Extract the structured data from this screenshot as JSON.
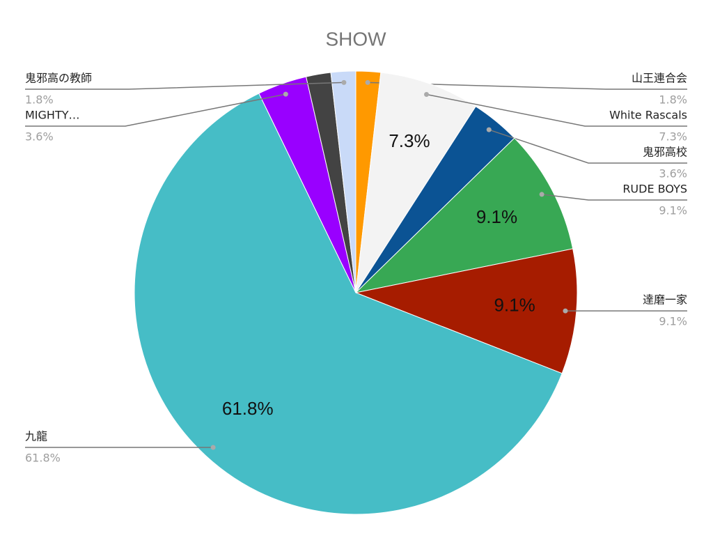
{
  "chart_data": {
    "type": "pie",
    "title": "SHOW",
    "categories": [
      "山王連合会",
      "White Rascals",
      "鬼邪高校",
      "RUDE BOYS",
      "達磨一家",
      "九龍",
      "MIGHTY…",
      null,
      "鬼邪高の教師"
    ],
    "values": [
      1.8,
      7.3,
      3.6,
      9.1,
      9.1,
      61.8,
      3.6,
      1.8,
      1.8
    ],
    "value_labels": [
      "1.8%",
      "7.3%",
      "3.6%",
      "9.1%",
      "9.1%",
      "61.8%",
      "3.6%",
      null,
      "1.8%"
    ],
    "colors": [
      "#ff9900",
      "#f3f3f3",
      "#0b5394",
      "#38a854",
      "#a61c00",
      "#46bdc6",
      "#9900ff",
      "#434343",
      "#c9daf8"
    ]
  }
}
